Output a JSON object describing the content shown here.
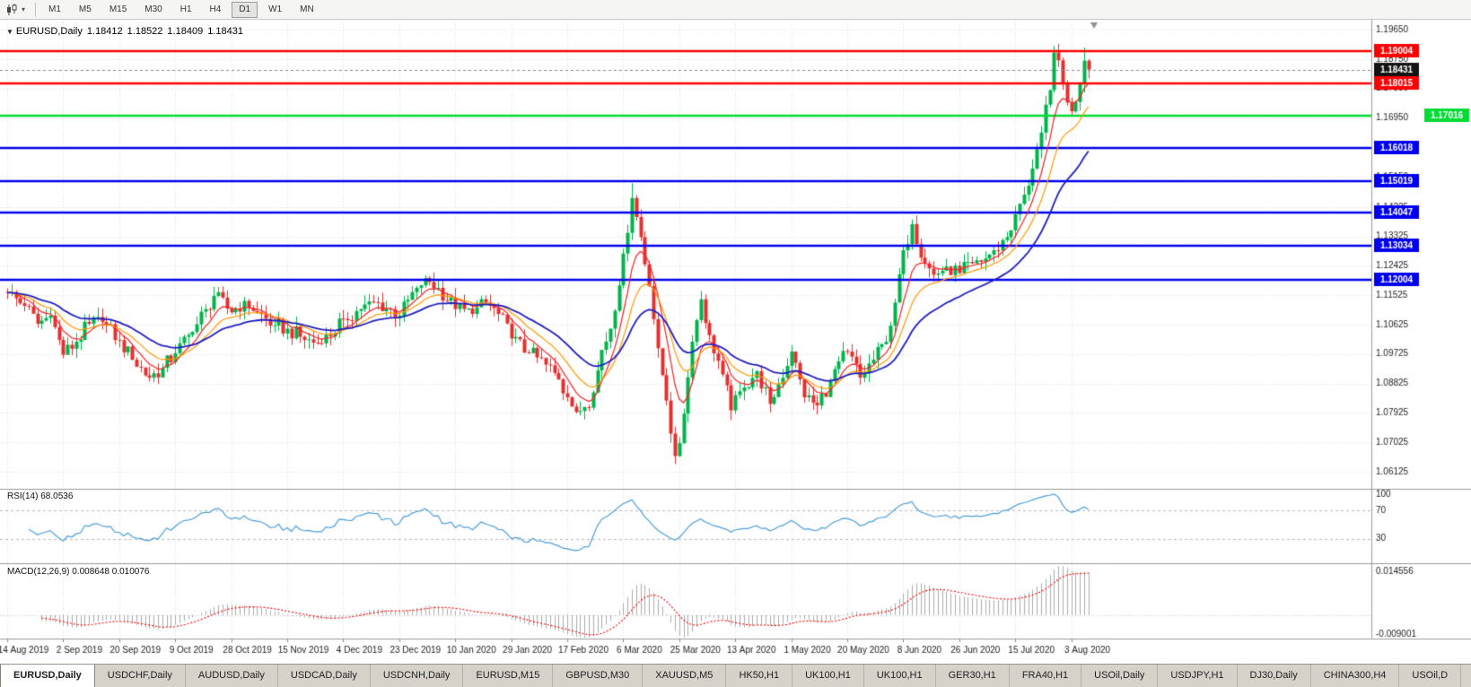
{
  "toolbar": {
    "chart_type_icon": "candlestick-chart-icon",
    "dropdown_caret": "▾",
    "timeframes": [
      {
        "label": "M1",
        "active": false
      },
      {
        "label": "M5",
        "active": false
      },
      {
        "label": "M15",
        "active": false
      },
      {
        "label": "M30",
        "active": false
      },
      {
        "label": "H1",
        "active": false
      },
      {
        "label": "H4",
        "active": false
      },
      {
        "label": "D1",
        "active": true
      },
      {
        "label": "W1",
        "active": false
      },
      {
        "label": "MN",
        "active": false
      }
    ]
  },
  "chart": {
    "symbol_line": {
      "collapse_icon": "▼",
      "title": "EURUSD,Daily",
      "open": "1.18412",
      "high": "1.18522",
      "low": "1.18409",
      "close": "1.18431"
    },
    "price_scale_labels": [
      "1.19650",
      "1.18750",
      "1.17850",
      "1.16950",
      "1.16050",
      "1.15150",
      "1.14225",
      "1.13325",
      "1.12425",
      "1.11525",
      "1.10625",
      "1.09725",
      "1.08825",
      "1.07925",
      "1.07025",
      "1.06125"
    ],
    "levels": [
      {
        "value": 1.19004,
        "label": "1.19004",
        "color": "#FF0000",
        "type": "resistance",
        "badge_align": "left"
      },
      {
        "value": 1.18431,
        "label": "1.18431",
        "color": "#141414",
        "type": "current-price",
        "badge_align": "left"
      },
      {
        "value": 1.18015,
        "label": "1.18015",
        "color": "#FF0000",
        "type": "resistance",
        "badge_align": "left"
      },
      {
        "value": 1.17016,
        "label": "1.17016",
        "color": "#00DC32",
        "type": "support",
        "badge_align": "right"
      },
      {
        "value": 1.16018,
        "label": "1.16018",
        "color": "#0000EE",
        "type": "support",
        "badge_align": "left"
      },
      {
        "value": 1.15019,
        "label": "1.15019",
        "color": "#0000EE",
        "type": "support",
        "badge_align": "left"
      },
      {
        "value": 1.14047,
        "label": "1.14047",
        "color": "#0000EE",
        "type": "support",
        "badge_align": "left"
      },
      {
        "value": 1.13034,
        "label": "1.13034",
        "color": "#0000EE",
        "type": "support",
        "badge_align": "left"
      },
      {
        "value": 1.12004,
        "label": "1.12004",
        "color": "#0000EE",
        "type": "support",
        "badge_align": "left"
      }
    ]
  },
  "rsi": {
    "label": "RSI(14) 68.0536",
    "scale_labels": [
      "100",
      "70",
      "30"
    ],
    "scale_values": [
      100,
      70,
      30
    ],
    "level_lines": [
      70,
      30
    ],
    "line_color": "#4C9FDB"
  },
  "macd": {
    "label": "MACD(12,26,9) 0.008648 0.010076",
    "scale_top": "0.014556",
    "scale_bottom": "-0.009001",
    "hist_color": "#ABABAB",
    "signal_color": "#FF0000"
  },
  "chart_data": {
    "type": "candlestick",
    "symbol": "EURUSD",
    "period": "Daily",
    "ohlc_current": {
      "open": 1.18412,
      "high": 1.18522,
      "low": 1.18409,
      "close": 1.18431
    },
    "candle_count": 252,
    "y_axis_range": [
      1.056,
      1.199
    ],
    "x_axis_labels": [
      "14 Aug 2019",
      "2 Sep 2019",
      "20 Sep 2019",
      "9 Oct 2019",
      "28 Oct 2019",
      "15 Nov 2019",
      "4 Dec 2019",
      "23 Dec 2019",
      "10 Jan 2020",
      "29 Jan 2020",
      "17 Feb 2020",
      "6 Mar 2020",
      "25 Mar 2020",
      "13 Apr 2020",
      "1 May 2020",
      "20 May 2020",
      "8 Jun 2020",
      "26 Jun 2020",
      "15 Jul 2020",
      "3 Aug 2020"
    ],
    "candles_per_label": 13,
    "price_anchors": [
      [
        0,
        1.116
      ],
      [
        4,
        1.112
      ],
      [
        7,
        1.1065
      ],
      [
        10,
        1.109
      ],
      [
        13,
        1.097
      ],
      [
        16,
        1.101
      ],
      [
        19,
        1.1065
      ],
      [
        22,
        1.107
      ],
      [
        26,
        1.1015
      ],
      [
        29,
        1.0955
      ],
      [
        33,
        1.09
      ],
      [
        36,
        1.093
      ],
      [
        39,
        1.0975
      ],
      [
        43,
        1.104
      ],
      [
        46,
        1.111
      ],
      [
        48,
        1.115
      ],
      [
        52,
        1.11
      ],
      [
        55,
        1.1135
      ],
      [
        58,
        1.11
      ],
      [
        62,
        1.106
      ],
      [
        65,
        1.105
      ],
      [
        69,
        1.1015
      ],
      [
        73,
        1.1005
      ],
      [
        78,
        1.108
      ],
      [
        82,
        1.111
      ],
      [
        86,
        1.113
      ],
      [
        91,
        1.109
      ],
      [
        95,
        1.1175
      ],
      [
        97,
        1.1205
      ],
      [
        100,
        1.1175
      ],
      [
        104,
        1.111
      ],
      [
        108,
        1.1095
      ],
      [
        111,
        1.113
      ],
      [
        114,
        1.1095
      ],
      [
        117,
        1.102
      ],
      [
        121,
        1.0975
      ],
      [
        125,
        1.094
      ],
      [
        128,
        1.0895
      ],
      [
        130,
        1.084
      ],
      [
        132,
        1.0795
      ],
      [
        134,
        1.081
      ],
      [
        136,
        1.0855
      ],
      [
        138,
        1.0985
      ],
      [
        140,
        1.105
      ],
      [
        143,
        1.128
      ],
      [
        145,
        1.145
      ],
      [
        147,
        1.133
      ],
      [
        149,
        1.118
      ],
      [
        151,
        1.099
      ],
      [
        153,
        1.083
      ],
      [
        155,
        1.066
      ],
      [
        156,
        1.07
      ],
      [
        157,
        1.079
      ],
      [
        159,
        1.101
      ],
      [
        161,
        1.114
      ],
      [
        163,
        1.103
      ],
      [
        166,
        1.091
      ],
      [
        168,
        1.08
      ],
      [
        171,
        1.087
      ],
      [
        174,
        1.092
      ],
      [
        177,
        1.082
      ],
      [
        179,
        1.088
      ],
      [
        182,
        1.098
      ],
      [
        185,
        1.084
      ],
      [
        188,
        1.0815
      ],
      [
        191,
        1.089
      ],
      [
        193,
        1.095
      ],
      [
        195,
        1.098
      ],
      [
        198,
        1.09
      ],
      [
        201,
        1.0955
      ],
      [
        204,
        1.101
      ],
      [
        206,
        1.113
      ],
      [
        208,
        1.129
      ],
      [
        210,
        1.137
      ],
      [
        213,
        1.125
      ],
      [
        215,
        1.1215
      ],
      [
        218,
        1.124
      ],
      [
        221,
        1.122
      ],
      [
        224,
        1.125
      ],
      [
        227,
        1.1265
      ],
      [
        229,
        1.129
      ],
      [
        232,
        1.133
      ],
      [
        234,
        1.14
      ],
      [
        236,
        1.146
      ],
      [
        238,
        1.154
      ],
      [
        240,
        1.165
      ],
      [
        242,
        1.178
      ],
      [
        243,
        1.1895
      ],
      [
        245,
        1.18
      ],
      [
        247,
        1.1715
      ],
      [
        249,
        1.18
      ],
      [
        250,
        1.187
      ],
      [
        251,
        1.18431
      ]
    ],
    "wick_highs": {
      "145": 1.1495,
      "243": 1.1915,
      "250": 1.191
    },
    "wick_lows": {
      "155": 1.0636
    },
    "horizontal_levels": [
      1.19004,
      1.18015,
      1.17016,
      1.16018,
      1.15019,
      1.14047,
      1.13034,
      1.12004
    ],
    "moving_averages": [
      {
        "type": "ema",
        "period": 7,
        "color": "#FF1E1E"
      },
      {
        "type": "ema",
        "period": 14,
        "color": "#FF9800"
      },
      {
        "type": "ema",
        "period": 28,
        "color": "#2020C0"
      }
    ],
    "indicators": {
      "rsi": {
        "period": 14,
        "current": 68.0536,
        "range": [
          0,
          100
        ],
        "levels": [
          70,
          30
        ]
      },
      "macd": {
        "fast": 12,
        "slow": 26,
        "signal": 9,
        "current_main": 0.008648,
        "current_signal": 0.010076,
        "scale_max": 0.014556,
        "scale_min": -0.009001
      }
    }
  },
  "colors": {
    "bull": "#00B44B",
    "bear": "#E63030",
    "grid": "#DCDCDC",
    "separator": "#9A9A98",
    "scale_text": "#1E1E1E",
    "badge_text": "#FFFFFF"
  },
  "tabs": {
    "active_index": 0,
    "items": [
      "EURUSD,Daily",
      "USDCHF,Daily",
      "AUDUSD,Daily",
      "USDCAD,Daily",
      "USDCNH,Daily",
      "EURUSD,M15",
      "GBPUSD,M30",
      "XAUUSD,M5",
      "HK50,H1",
      "UK100,H1",
      "UK100,H1",
      "GER30,H1",
      "FRA40,H1",
      "USOil,Daily",
      "USDJPY,H1",
      "DJ30,Daily",
      "CHINA300,H4",
      "USOil,D"
    ]
  }
}
